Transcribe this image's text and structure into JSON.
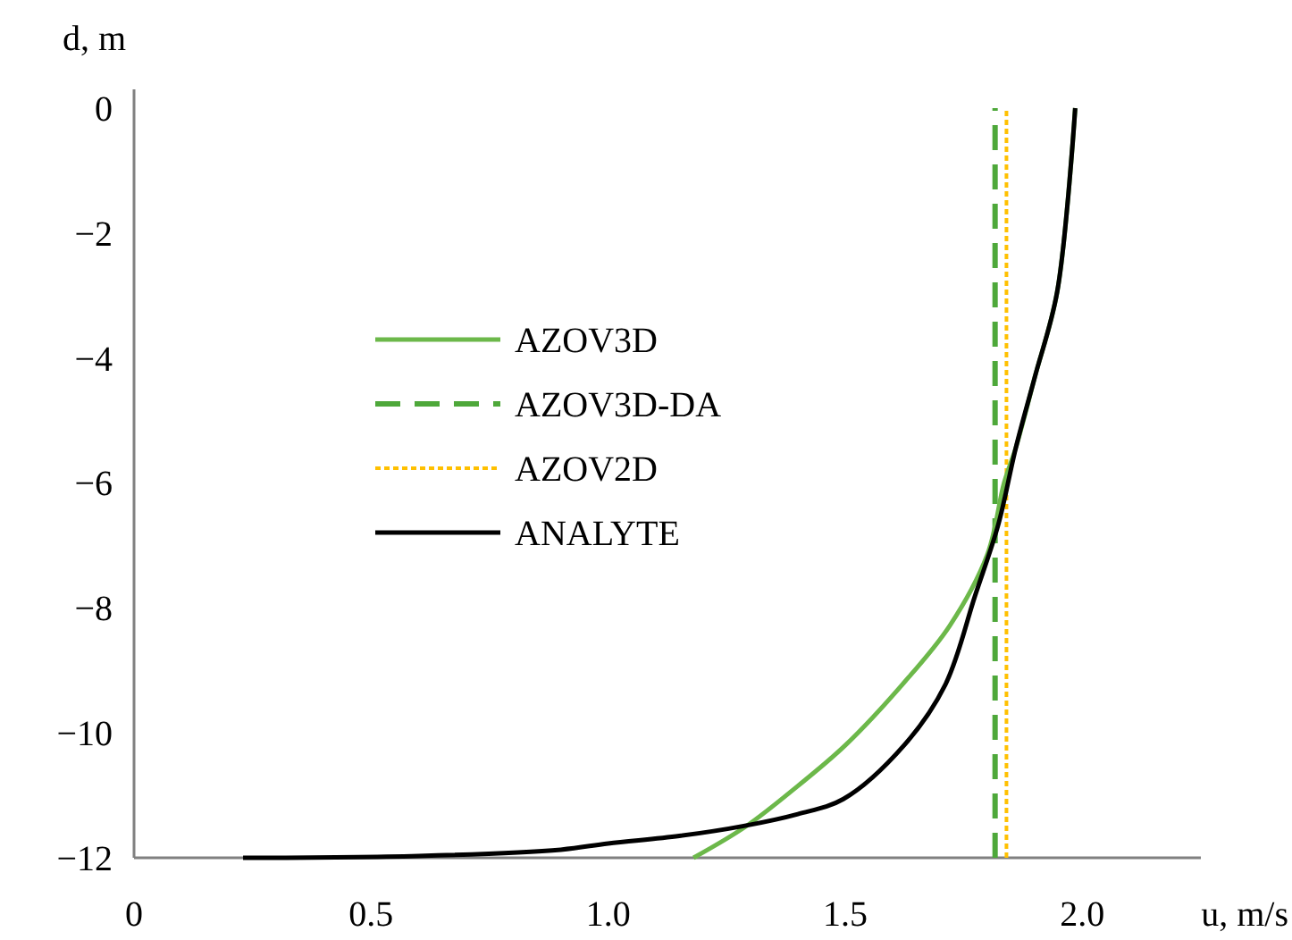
{
  "chart_data": {
    "type": "line",
    "xlabel": "u, m/s",
    "ylabel": "d, m",
    "xlim": [
      0,
      2.25
    ],
    "ylim": [
      -12,
      0.3
    ],
    "xticks": [
      0,
      0.5,
      {
        "value": 1,
        "label": "1.0"
      },
      1.5,
      {
        "value": 2,
        "label": "2.0"
      }
    ],
    "yticks": [
      0,
      -2,
      -4,
      -6,
      -8,
      -10,
      -12
    ],
    "grid": false,
    "legend": "left",
    "series": [
      {
        "name": "AZOV3D",
        "color": "#6cb84a",
        "line_style": "solid",
        "x": [
          1.18,
          1.29,
          1.4,
          1.5,
          1.62,
          1.72,
          1.8,
          1.835,
          1.86,
          1.9,
          1.947,
          1.985
        ],
        "values": [
          -12,
          -11.5,
          -10.85,
          -10.2,
          -9.23,
          -8.29,
          -7.14,
          -6.0,
          -5.43,
          -4.3,
          -2.94,
          0
        ]
      },
      {
        "name": "AZOV3D-DA",
        "color": "#4ea83a",
        "line_style": "dashed",
        "x": [
          1.816,
          1.816
        ],
        "values": [
          -12,
          0
        ]
      },
      {
        "name": "AZOV2D",
        "color": "#ffc000",
        "line_style": "dotted",
        "x": [
          1.84,
          1.84
        ],
        "values": [
          -12,
          0
        ]
      },
      {
        "name": "ANALYTE",
        "color": "#000000",
        "line_style": "solid",
        "x": [
          0.23,
          0.6,
          0.9,
          1.0,
          1.15,
          1.286,
          1.4,
          1.496,
          1.624,
          1.711,
          1.774,
          1.823,
          1.86,
          1.9,
          1.947,
          1.985
        ],
        "values": [
          -12,
          -11.97,
          -11.87,
          -11.77,
          -11.65,
          -11.49,
          -11.3,
          -11.06,
          -10.2,
          -9.23,
          -7.8,
          -6.66,
          -5.43,
          -4.3,
          -2.94,
          0
        ]
      }
    ]
  }
}
